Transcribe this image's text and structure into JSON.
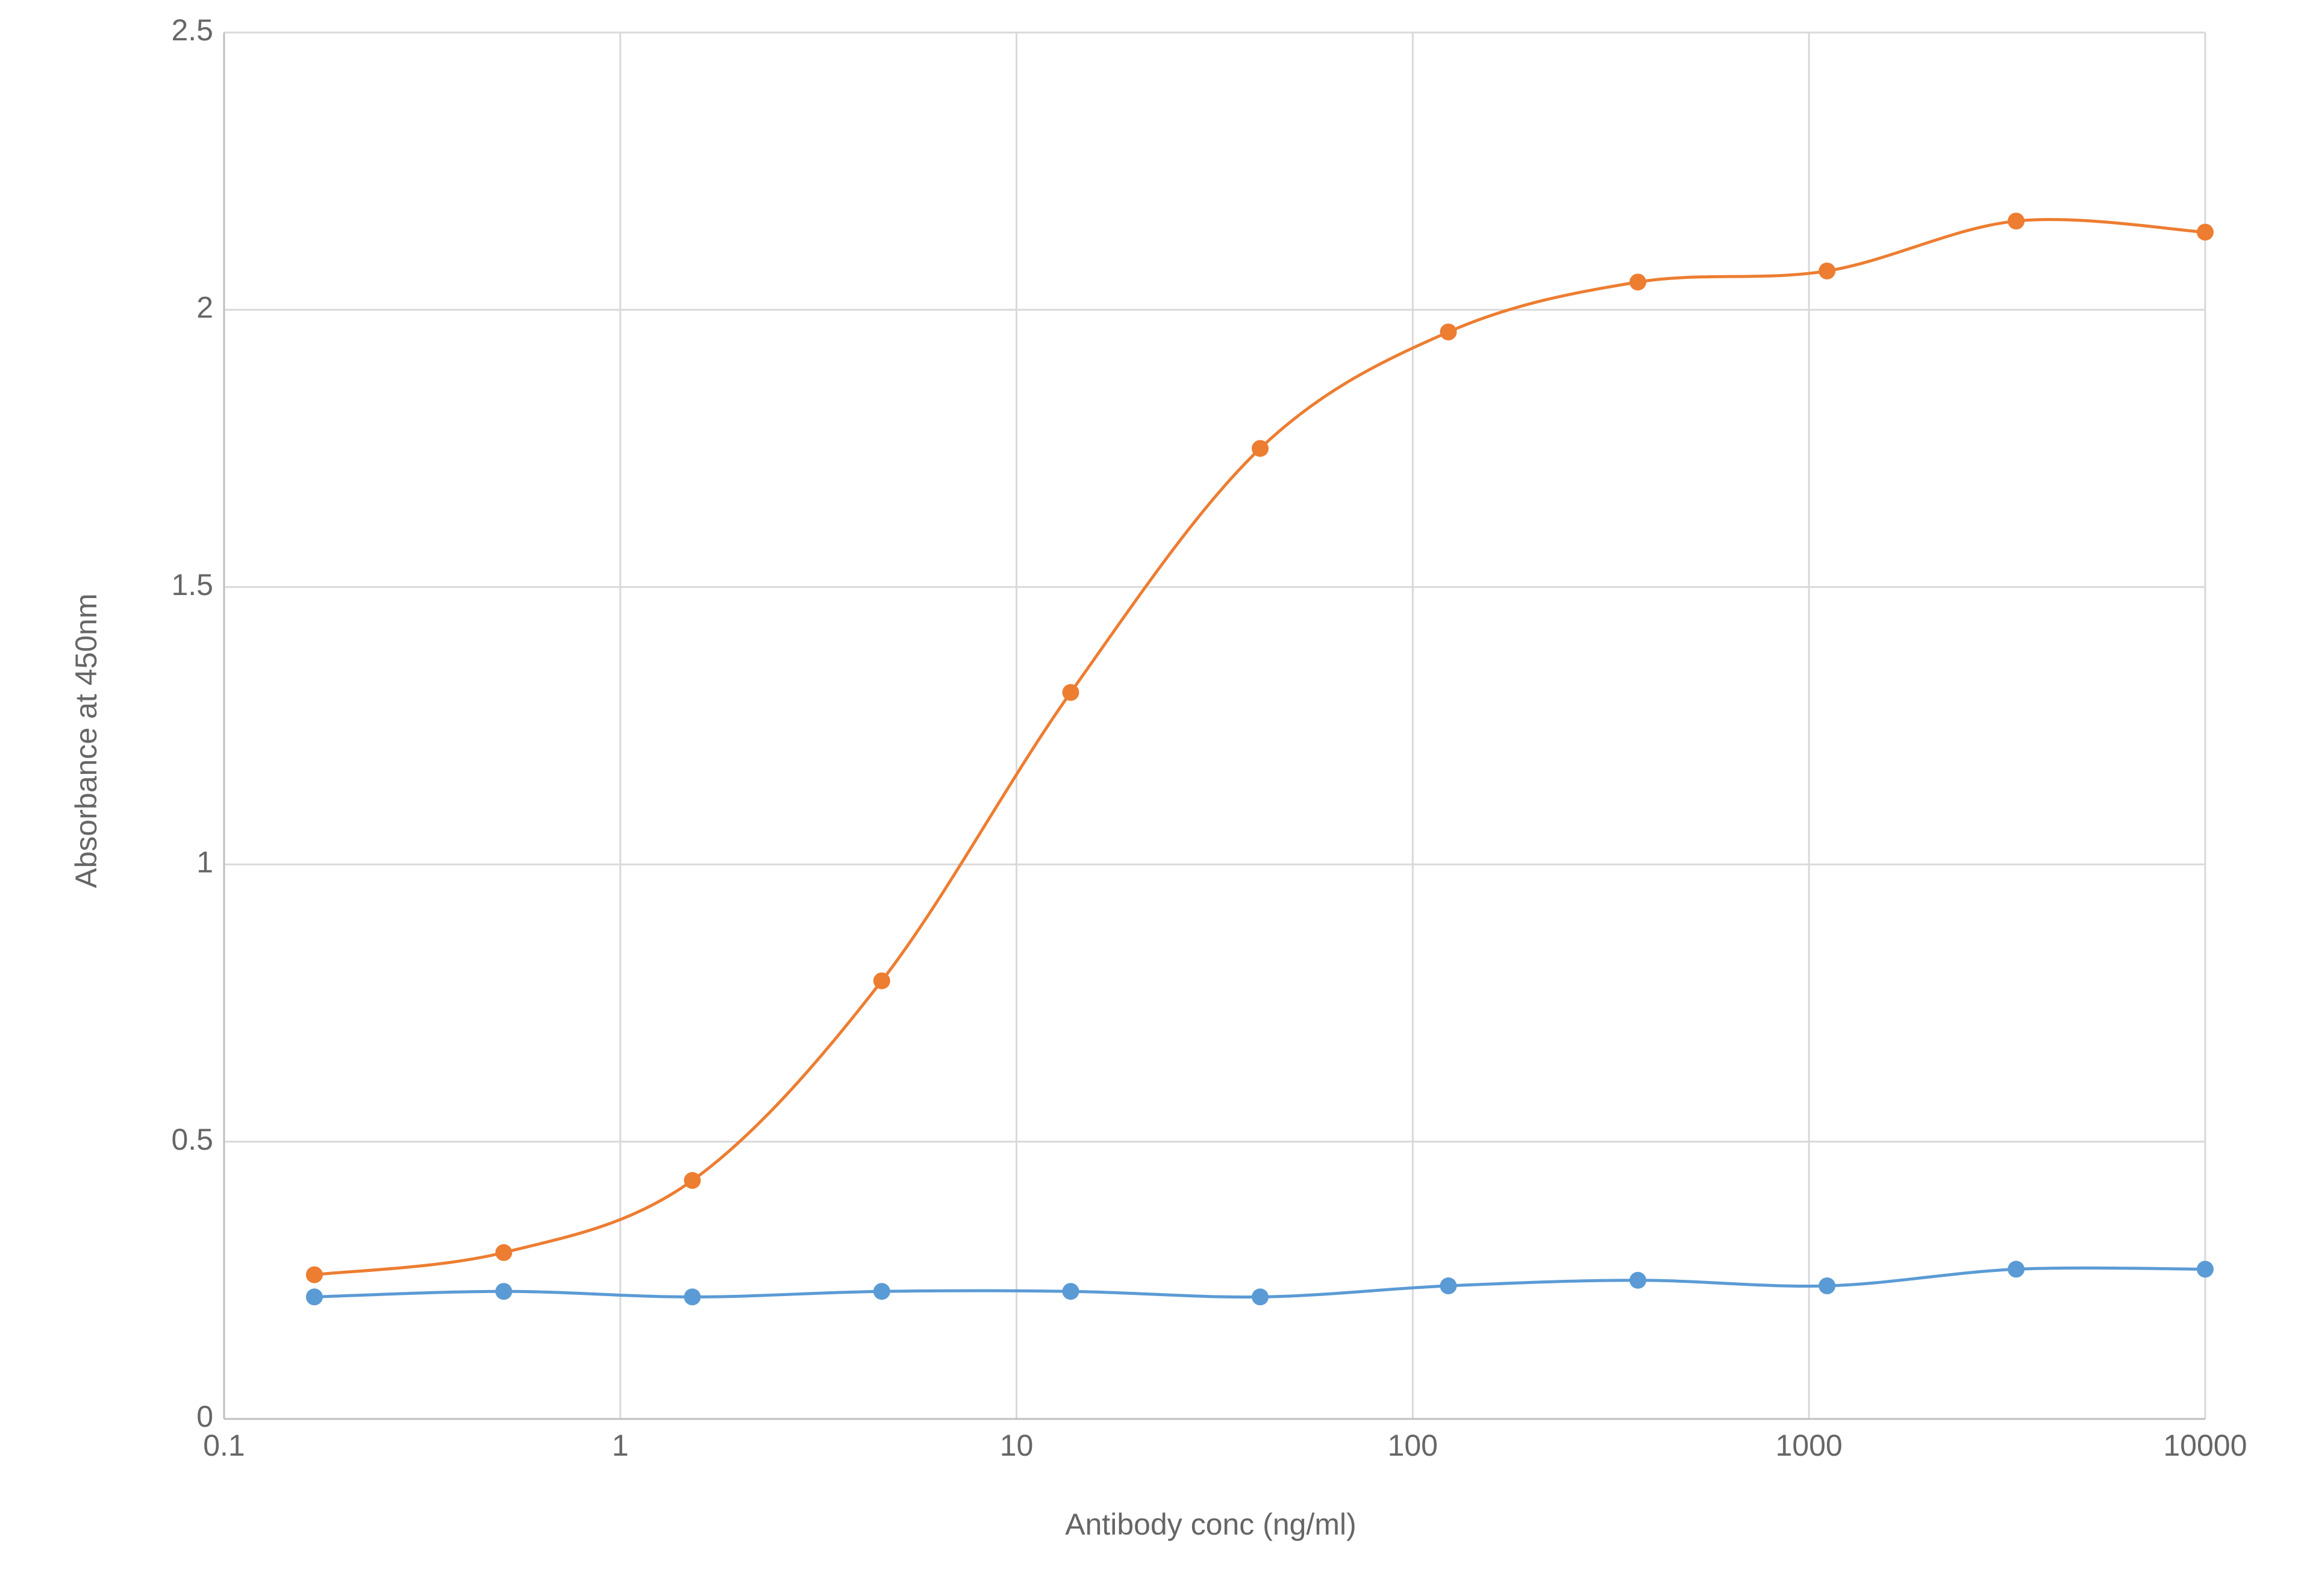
{
  "chart_data": {
    "type": "line",
    "xlabel": "Antibody conc (ng/ml)",
    "ylabel": "Absorbance at 450nm",
    "x": [
      0.169,
      0.508,
      1.52,
      4.57,
      13.7,
      41.2,
      123,
      370,
      1111,
      3333,
      10000
    ],
    "series": [
      {
        "color": "#ed7d31",
        "values": [
          0.26,
          0.3,
          0.43,
          0.79,
          1.31,
          1.75,
          1.96,
          2.05,
          2.07,
          2.16,
          2.14
        ]
      },
      {
        "color": "#5b9bd5",
        "values": [
          0.22,
          0.23,
          0.22,
          0.23,
          0.23,
          0.22,
          0.24,
          0.25,
          0.24,
          0.27,
          0.27
        ]
      }
    ],
    "xscale": "log",
    "xlim": [
      0.1,
      10000
    ],
    "xticks": [
      0.1,
      1,
      10,
      100,
      1000,
      10000
    ],
    "ylim": [
      0,
      2.5
    ],
    "yticks": [
      0,
      0.5,
      1,
      1.5,
      2,
      2.5
    ],
    "grid": true
  }
}
